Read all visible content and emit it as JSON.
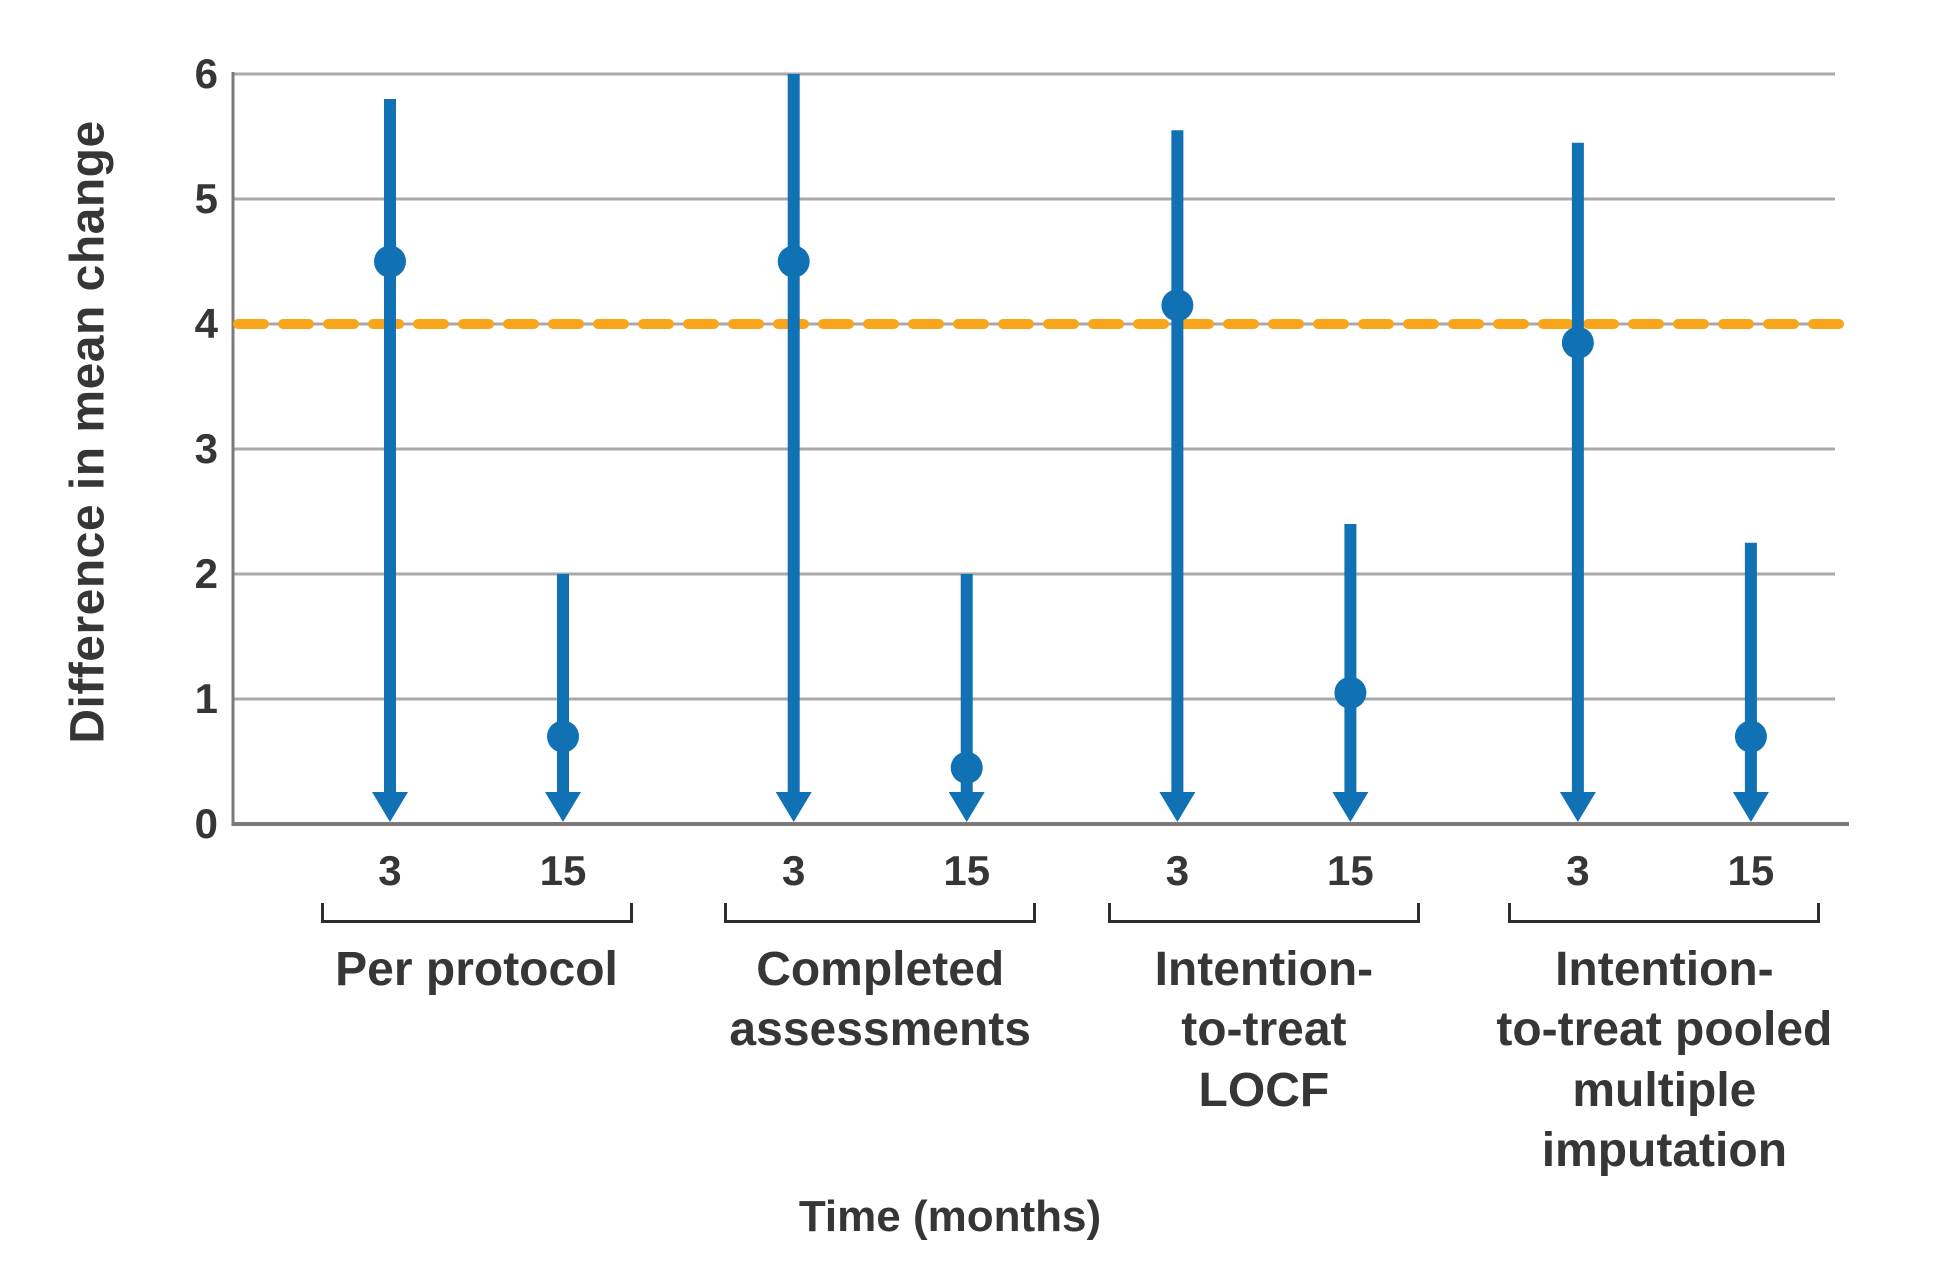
{
  "figure": {
    "y_axis_title": "Difference in mean change",
    "x_axis_title": "Time (months)",
    "colors": {
      "point_and_ci_blue": "#1171b5",
      "reference_line_orange": "#f8a51b",
      "gridline_gray": "#a9a9a9",
      "axis_gray": "#7a7a7a",
      "text_dark": "#363636",
      "bracket_dark": "#2d2d2d",
      "background": "#ffffff"
    }
  },
  "chart_data": {
    "type": "scatter",
    "title": "",
    "xlabel": "Time (months)",
    "ylabel": "Difference in mean change",
    "y_axis": {
      "ticks": [
        0,
        1,
        2,
        3,
        4,
        5,
        6
      ],
      "ylim": [
        0,
        6
      ],
      "grid": true
    },
    "reference_line": {
      "value": 4,
      "style": "dashed",
      "color": "#f8a51b"
    },
    "groups": [
      {
        "label_lines": [
          "Per protocol"
        ],
        "points": [
          {
            "time_label": "3",
            "estimate": 4.5,
            "ci_upper": 5.8,
            "ci_lower": 0,
            "lower_arrow_truncated_at_0": true
          },
          {
            "time_label": "15",
            "estimate": 0.7,
            "ci_upper": 2.0,
            "ci_lower": 0,
            "lower_arrow_truncated_at_0": true
          }
        ]
      },
      {
        "label_lines": [
          "Completed",
          "assessments"
        ],
        "points": [
          {
            "time_label": "3",
            "estimate": 4.5,
            "ci_upper": 6.0,
            "ci_lower": 0,
            "lower_arrow_truncated_at_0": true
          },
          {
            "time_label": "15",
            "estimate": 0.45,
            "ci_upper": 2.0,
            "ci_lower": 0,
            "lower_arrow_truncated_at_0": true
          }
        ]
      },
      {
        "label_lines": [
          "Intention-",
          "to-treat",
          "LOCF"
        ],
        "points": [
          {
            "time_label": "3",
            "estimate": 4.15,
            "ci_upper": 5.55,
            "ci_lower": 0,
            "lower_arrow_truncated_at_0": true
          },
          {
            "time_label": "15",
            "estimate": 1.05,
            "ci_upper": 2.4,
            "ci_lower": 0,
            "lower_arrow_truncated_at_0": true
          }
        ]
      },
      {
        "label_lines": [
          "Intention-",
          "to-treat pooled",
          "multiple",
          "imputation"
        ],
        "points": [
          {
            "time_label": "3",
            "estimate": 3.85,
            "ci_upper": 5.45,
            "ci_lower": 0,
            "lower_arrow_truncated_at_0": true
          },
          {
            "time_label": "15",
            "estimate": 0.7,
            "ci_upper": 2.25,
            "ci_lower": 0,
            "lower_arrow_truncated_at_0": true
          }
        ]
      }
    ],
    "layout": {
      "legend": "none",
      "group_center_fractions": [
        0.152,
        0.404,
        0.6435,
        0.8935
      ],
      "bar_offset_fraction": 0.054
    }
  }
}
